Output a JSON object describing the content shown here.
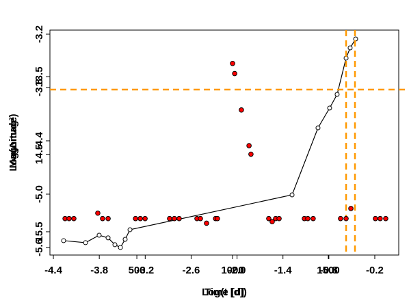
{
  "chart_data": [
    {
      "type": "line",
      "xlabel": "Log(t [d])",
      "ylabel": "Log(Δmag²)",
      "color": "#000000",
      "xlim": [
        -4.445,
        0.113
      ],
      "ylim": [
        -5.685,
        -3.154
      ],
      "xticks": [
        -4.4,
        -3.8,
        -3.2,
        -2.6,
        {
          "value": -2,
          "label": "-2.0"
        },
        -1.4,
        -0.8,
        -0.2
      ],
      "yticks": [
        -3.2,
        -3.8,
        -4.4,
        {
          "value": -5,
          "label": "-5.0"
        },
        -5.6
      ],
      "x": [
        -4.266,
        -3.98,
        -3.802,
        -3.685,
        -3.596,
        -3.524,
        -3.462,
        -3.399,
        -1.281,
        -0.942,
        -0.79,
        -0.692,
        -0.575,
        -0.522,
        -0.45
      ],
      "values": [
        -5.523,
        -5.546,
        -5.462,
        -5.492,
        -5.569,
        -5.6,
        -5.508,
        -5.4,
        -5.008,
        -4.254,
        -4.031,
        -3.877,
        -3.469,
        -3.354,
        -3.254
      ],
      "vlines": [
        -0.575,
        -0.459
      ],
      "hlines": [
        -3.823
      ],
      "reference_color": "#ff9900"
    },
    {
      "type": "scatter",
      "xlabel": "Time [d]",
      "ylabel": "Magnitude",
      "color": "#ff0000",
      "xlim": [
        46,
        1868
      ],
      "ylim": [
        15.8,
        12.9
      ],
      "xticks": [
        500,
        1000,
        1500
      ],
      "yticks": [
        13.5,
        14.5,
        15.5
      ],
      "x": [
        125,
        146,
        171,
        296,
        321,
        350,
        493,
        518,
        543,
        671,
        696,
        721,
        814,
        832,
        864,
        911,
        921,
        1000,
        1011,
        1046,
        1086,
        1096,
        1189,
        1207,
        1225,
        1243,
        1375,
        1393,
        1421,
        1564,
        1593,
        1618,
        1746,
        1771,
        1800
      ],
      "values": [
        15.33,
        15.33,
        15.33,
        15.26,
        15.33,
        15.33,
        15.33,
        15.33,
        15.33,
        15.33,
        15.33,
        15.33,
        15.33,
        15.33,
        15.39,
        15.33,
        15.33,
        13.33,
        13.46,
        13.93,
        14.39,
        14.5,
        15.33,
        15.37,
        15.33,
        15.33,
        15.33,
        15.33,
        15.33,
        15.33,
        15.33,
        15.2,
        15.33,
        15.33,
        15.33
      ]
    }
  ]
}
